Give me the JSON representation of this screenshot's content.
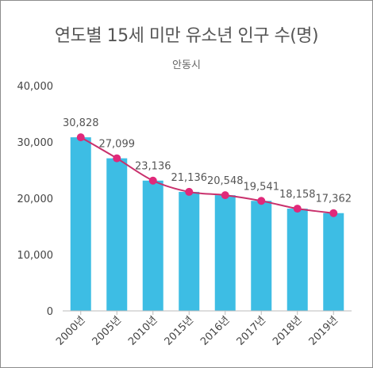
{
  "chart_data": {
    "type": "bar",
    "title": "연도별 15세 미만 유소년 인구 수(명)",
    "subtitle": "안동시",
    "categories": [
      "2000년",
      "2005년",
      "2010년",
      "2015년",
      "2016년",
      "2017년",
      "2018년",
      "2019년"
    ],
    "values": [
      30828,
      27099,
      23136,
      21136,
      20548,
      19541,
      18158,
      17362
    ],
    "data_labels": [
      "30,828",
      "27,099",
      "23,136",
      "21,136",
      "20,548",
      "19,541",
      "18,158",
      "17,362"
    ],
    "overlay_line": true,
    "yticks": [
      "0",
      "10,000",
      "20,000",
      "30,000",
      "40,000"
    ],
    "ylim": [
      0,
      40000
    ],
    "grid": false,
    "legend": "none",
    "colors": {
      "bar": "#3dbde4",
      "line": "#c9306c",
      "marker": "#e0297a"
    }
  }
}
